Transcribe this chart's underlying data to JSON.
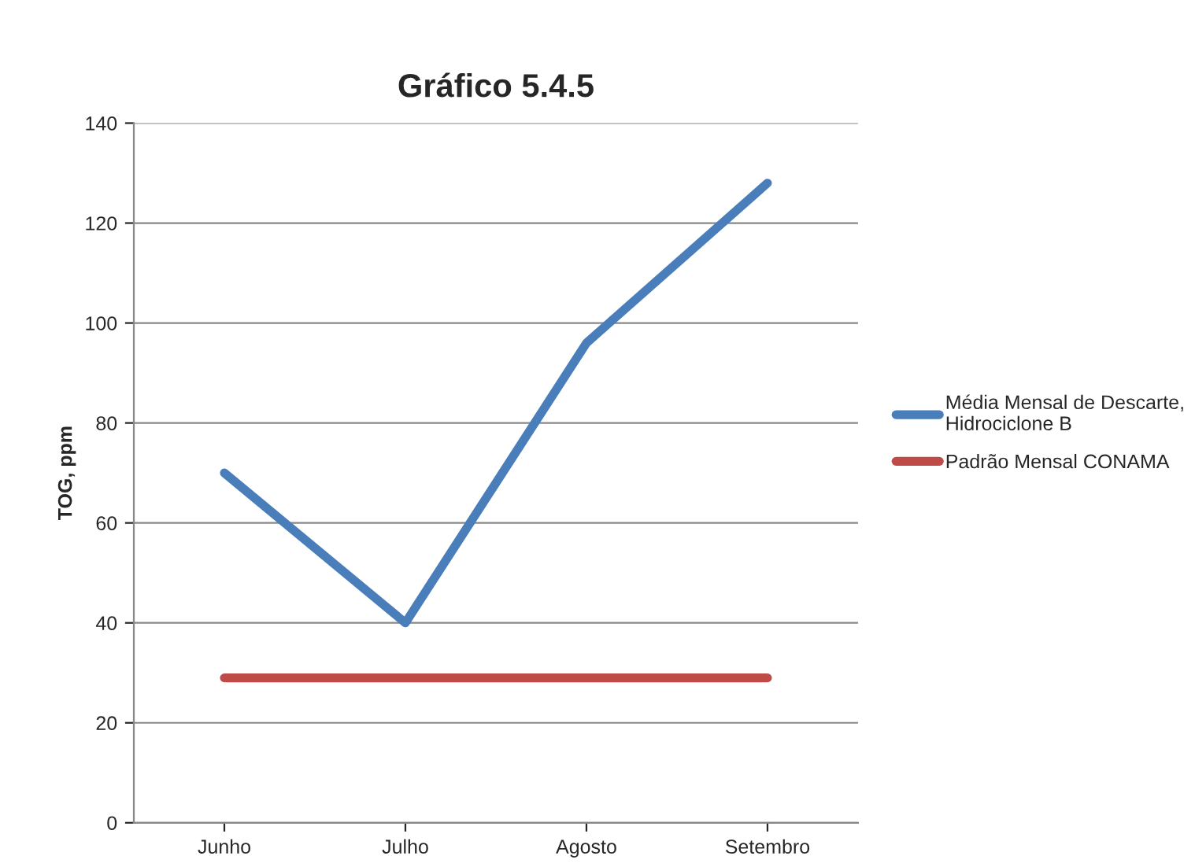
{
  "chart_data": {
    "type": "line",
    "title": "Gráfico 5.4.5",
    "ylabel": "TOG, ppm",
    "categories": [
      "Junho",
      "Julho",
      "Agosto",
      "Setembro"
    ],
    "series": [
      {
        "name": "Média Mensal de Descarte,\nHidrociclone B",
        "color": "#4a7ebb",
        "values": [
          70,
          40,
          96,
          128
        ]
      },
      {
        "name": "Padrão Mensal CONAMA",
        "color": "#be4b48",
        "values": [
          29,
          29,
          29,
          29
        ]
      }
    ],
    "ylim": [
      0,
      140
    ],
    "yticks": [
      0,
      20,
      40,
      60,
      80,
      100,
      120,
      140
    ],
    "grid": "y",
    "legend": "right",
    "marker": "none",
    "line_style": "solid"
  }
}
